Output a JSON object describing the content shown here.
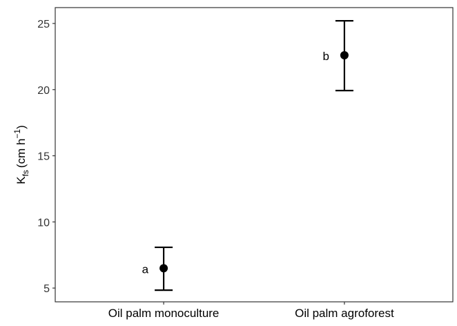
{
  "chart_data": {
    "type": "pointrange",
    "ylabel": {
      "base": "K",
      "sub": "fs",
      "unit": "(cm  h",
      "sup": "−1",
      "close": ")"
    },
    "categories": [
      "Oil palm monoculture",
      "Oil palm agroforest"
    ],
    "values": [
      6.5,
      22.6
    ],
    "lower": [
      4.84,
      19.93
    ],
    "upper": [
      8.08,
      25.2
    ],
    "annotations": [
      "a",
      "b"
    ],
    "color": "#000000",
    "ylim": [
      3.96,
      26.2
    ],
    "yticks": [
      5,
      10,
      15,
      20,
      25
    ]
  }
}
